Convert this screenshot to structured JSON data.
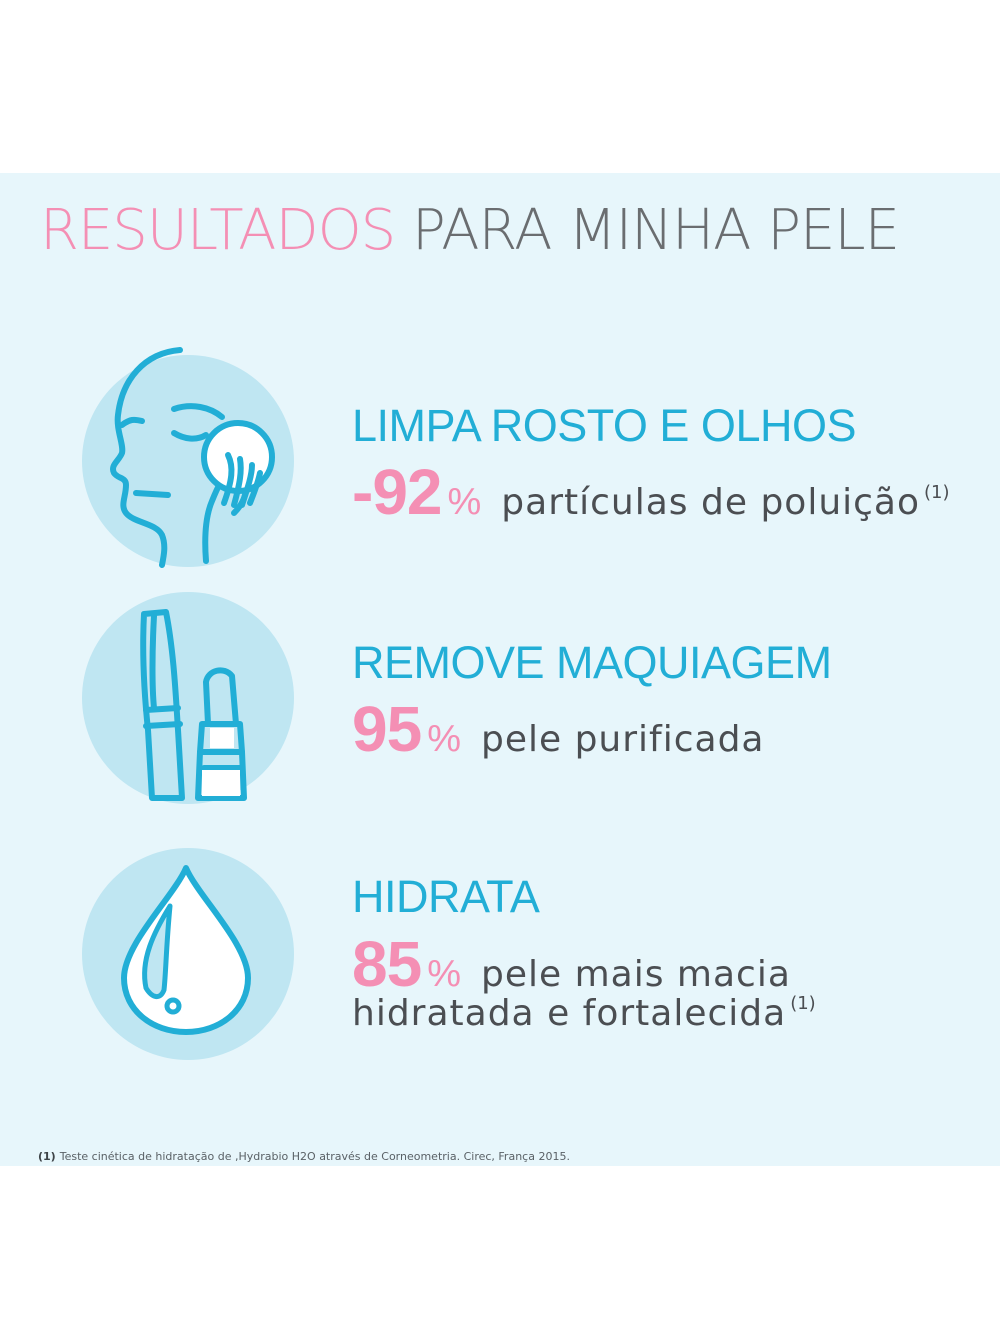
{
  "title": {
    "highlight": "RESULTADOS",
    "rest": "PARA MINHA PELE"
  },
  "benefits": [
    {
      "icon": "face-cleansing-icon",
      "heading": "LIMPA ROSTO E OLHOS",
      "value": "-92",
      "unit": "%",
      "description": "partículas de poluição",
      "note": "(1)"
    },
    {
      "icon": "mascara-lipstick-icon",
      "heading": "REMOVE MAQUIAGEM",
      "value": "95",
      "unit": "%",
      "description": "pele purificada"
    },
    {
      "icon": "water-drop-icon",
      "heading": "HIDRATA",
      "value": "85",
      "unit": "%",
      "description": "pele mais macia",
      "description_line2": "hidratada e fortalecida",
      "note": "(1)"
    }
  ],
  "footnote": {
    "marker": "(1)",
    "text": "Teste cinética de hidratação de ,Hydrabio H2O através de Corneometria. Cirec, França 2015."
  },
  "colors": {
    "accent_pink": "#f48fb4",
    "accent_blue": "#22aed6",
    "panel_bg": "#e7f6fb",
    "icon_circle": "#bfe6f2",
    "text_gray": "#4b4e52"
  }
}
